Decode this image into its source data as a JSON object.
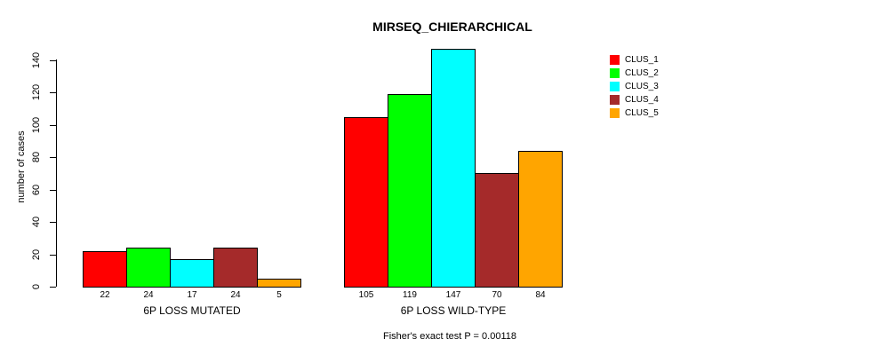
{
  "chart_data": {
    "type": "bar",
    "title": "MIRSEQ_CHIERARCHICAL",
    "ylabel": "number of cases",
    "xlabel": "",
    "footer": "Fisher's exact test P = 0.00118",
    "ylim": [
      0,
      140
    ],
    "yticks": [
      0,
      20,
      40,
      60,
      80,
      100,
      120,
      140
    ],
    "grid": false,
    "bar_borders": "#000000",
    "background": "#ffffff",
    "categories": [
      "6P LOSS MUTATED",
      "6P LOSS WILD-TYPE"
    ],
    "series": [
      {
        "name": "CLUS_1",
        "color": "#FF0000",
        "values": [
          22,
          105
        ]
      },
      {
        "name": "CLUS_2",
        "color": "#00FF00",
        "values": [
          24,
          119
        ]
      },
      {
        "name": "CLUS_3",
        "color": "#00FFFF",
        "values": [
          17,
          147
        ]
      },
      {
        "name": "CLUS_4",
        "color": "#A52A2A",
        "values": [
          24,
          70
        ]
      },
      {
        "name": "CLUS_5",
        "color": "#FFA500",
        "values": [
          5,
          84
        ]
      }
    ],
    "groups": [
      {
        "label": "6P LOSS MUTATED",
        "values": [
          22,
          24,
          17,
          24,
          5
        ]
      },
      {
        "label": "6P LOSS WILD-TYPE",
        "values": [
          105,
          119,
          147,
          70,
          84
        ]
      }
    ],
    "value_labels_shown": true,
    "legend": {
      "position": "top-right",
      "entries": [
        {
          "label": "CLUS_1",
          "color": "#FF0000"
        },
        {
          "label": "CLUS_2",
          "color": "#00FF00"
        },
        {
          "label": "CLUS_3",
          "color": "#00FFFF"
        },
        {
          "label": "CLUS_4",
          "color": "#A52A2A"
        },
        {
          "label": "CLUS_5",
          "color": "#FFA500"
        }
      ]
    }
  }
}
